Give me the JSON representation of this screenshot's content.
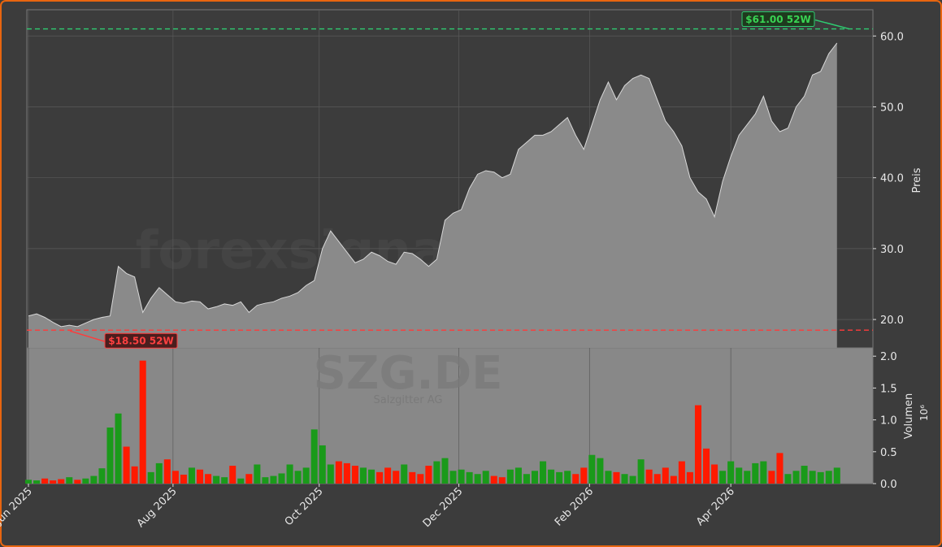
{
  "chart_data": {
    "type": "stock",
    "watermark": "forexsignale.trade",
    "symbol": "SZG.DE",
    "company": "Salzgitter AG",
    "price_label": "Preis",
    "volume_label": "Volumen",
    "volume_unit": "10⁶",
    "categories": [
      null,
      null,
      null,
      null,
      null,
      null,
      null,
      null,
      null,
      null,
      null,
      null,
      null,
      null,
      null,
      null,
      null,
      null,
      null,
      null,
      null,
      null,
      null,
      null,
      null,
      null,
      null,
      null,
      null,
      null,
      null,
      null,
      null,
      null,
      null,
      null,
      null,
      null,
      null,
      null,
      null,
      null,
      null,
      null,
      null,
      null,
      null,
      null,
      null,
      null,
      null,
      null,
      null,
      null,
      null,
      null,
      null,
      null,
      null,
      null,
      null,
      null,
      null,
      null,
      null,
      null,
      null,
      null,
      null,
      null,
      null,
      null,
      null,
      null,
      null,
      null,
      null,
      null,
      null,
      null,
      null,
      null,
      null,
      null,
      null,
      null,
      null,
      null,
      null,
      null,
      null,
      null,
      null,
      null,
      null,
      null,
      null,
      null,
      null,
      null
    ],
    "xlim": [
      -0.2,
      103.4
    ],
    "xticks": [
      {
        "value": 0,
        "label": "Jun 2025"
      },
      {
        "value": 17.7,
        "label": "Aug 2025"
      },
      {
        "value": 35.6,
        "label": "Oct 2025"
      },
      {
        "value": 52.7,
        "label": "Dec 2025"
      },
      {
        "value": 68.7,
        "label": "Feb 2026"
      },
      {
        "value": 86,
        "label": "Apr 2026"
      }
    ],
    "series": [
      {
        "name": "Preis",
        "color": "#8a8a8a",
        "line_color": "#d8d8d8",
        "axis": "y",
        "values": [
          20.5,
          20.8,
          20.3,
          19.6,
          19.0,
          19.2,
          19.0,
          19.5,
          20.0,
          20.3,
          20.5,
          27.5,
          26.5,
          26.0,
          21.0,
          23.0,
          24.5,
          23.5,
          22.5,
          22.3,
          22.6,
          22.5,
          21.5,
          21.8,
          22.2,
          22.0,
          22.5,
          21.0,
          22.0,
          22.3,
          22.5,
          23.0,
          23.3,
          23.8,
          24.8,
          25.5,
          30.0,
          32.5,
          31.0,
          29.5,
          28.0,
          28.5,
          29.5,
          29.0,
          28.2,
          27.8,
          29.5,
          29.3,
          28.5,
          27.5,
          28.5,
          34.0,
          35.0,
          35.5,
          38.5,
          40.5,
          41.0,
          40.8,
          40.0,
          40.5,
          44.0,
          45.0,
          46.0,
          46.0,
          46.5,
          47.5,
          48.5,
          46.0,
          44.0,
          47.5,
          51.0,
          53.5,
          51.0,
          53.0,
          54.0,
          54.5,
          54.0,
          51.0,
          48.0,
          46.5,
          44.5,
          40.0,
          38.0,
          37.0,
          34.5,
          39.5,
          43.0,
          46.0,
          47.5,
          49.0,
          51.5,
          48.0,
          46.5,
          47.0,
          50.0,
          51.5,
          54.5,
          55.0,
          57.5,
          59.0
        ]
      },
      {
        "name": "Volumen",
        "axis": "y2",
        "up_color": "#1a9a1a",
        "down_color": "#ff1a00",
        "values": [
          0.06,
          0.05,
          0.08,
          0.05,
          0.07,
          0.1,
          0.06,
          0.08,
          0.12,
          0.24,
          0.88,
          1.1,
          0.58,
          0.27,
          1.93,
          0.18,
          0.32,
          0.38,
          0.2,
          0.14,
          0.25,
          0.22,
          0.15,
          0.12,
          0.1,
          0.28,
          0.08,
          0.15,
          0.3,
          0.1,
          0.12,
          0.16,
          0.3,
          0.2,
          0.25,
          0.85,
          0.6,
          0.3,
          0.35,
          0.32,
          0.28,
          0.25,
          0.22,
          0.18,
          0.25,
          0.2,
          0.3,
          0.18,
          0.15,
          0.28,
          0.35,
          0.4,
          0.2,
          0.22,
          0.18,
          0.15,
          0.2,
          0.12,
          0.1,
          0.22,
          0.25,
          0.15,
          0.2,
          0.35,
          0.22,
          0.18,
          0.2,
          0.15,
          0.25,
          0.45,
          0.4,
          0.2,
          0.18,
          0.15,
          0.12,
          0.38,
          0.22,
          0.15,
          0.25,
          0.12,
          0.35,
          0.18,
          1.23,
          0.55,
          0.3,
          0.2,
          0.35,
          0.25,
          0.2,
          0.32,
          0.35,
          0.2,
          0.48,
          0.15,
          0.2,
          0.28,
          0.2,
          0.18,
          0.2,
          0.25
        ]
      }
    ],
    "ylim": [
      16,
      63.7
    ],
    "yticks": [
      {
        "value": 20,
        "label": "20.0"
      },
      {
        "value": 30,
        "label": "30.0"
      },
      {
        "value": 40,
        "label": "40.0"
      },
      {
        "value": 50,
        "label": "50.0"
      },
      {
        "value": 60,
        "label": "60.0"
      }
    ],
    "y2lim": [
      0,
      2.13
    ],
    "y2ticks": [
      {
        "value": 0,
        "label": "0.0"
      },
      {
        "value": 0.5,
        "label": "0.5"
      },
      {
        "value": 1.0,
        "label": "1.0"
      },
      {
        "value": 1.5,
        "label": "1.5"
      },
      {
        "value": 2.0,
        "label": "2.0"
      }
    ],
    "hlines": [
      {
        "value": 61,
        "label": "$61.00 52W",
        "color": "#2ecc71",
        "text_color": "#39d353",
        "box": "#1e3a1e"
      },
      {
        "value": 18.5,
        "label": "$18.50 52W",
        "color": "#ff3b3b",
        "text_color": "#ff4040",
        "box": "#4a1e1e"
      }
    ],
    "grid": true
  }
}
